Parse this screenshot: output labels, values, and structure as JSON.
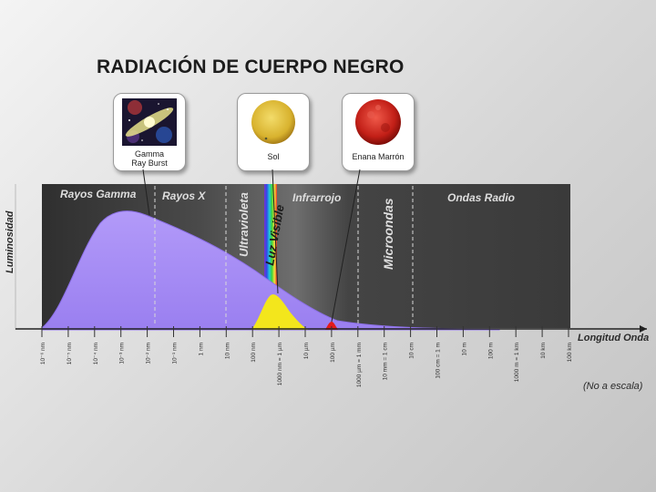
{
  "title": "RADIACIÓN DE CUERPO NEGRO",
  "objects": [
    {
      "id": "gamma",
      "caption": "Gamma Ray Burst"
    },
    {
      "id": "sun",
      "caption": "Sol"
    },
    {
      "id": "dwarf",
      "caption": "Enana Marrón"
    }
  ],
  "y_axis_label": "Luminosidad",
  "x_axis_label": "Longitud Onda",
  "scale_note": "(No a escala)",
  "regions": {
    "gamma": "Rayos Gamma",
    "xray": "Rayos X",
    "uv": "Ultravioleta",
    "visible": "Luz Visible",
    "ir": "Infrarrojo",
    "micro": "Microondas",
    "radio": "Ondas Radio"
  },
  "ticks": [
    "10⁻⁶ nm",
    "10⁻⁵ nm",
    "10⁻⁴ nm",
    "10⁻³ nm",
    "10⁻² nm",
    "10⁻¹ nm",
    "1 nm",
    "10 nm",
    "100 nm",
    "1000 nm = 1 µm",
    "10 µm",
    "100 µm",
    "1000 µm = 1 mm",
    "10 mm = 1 cm",
    "10 cm",
    "100 cm = 1 m",
    "10 m",
    "100 m",
    "1000 m = 1 km",
    "10 km",
    "100 km"
  ],
  "colors": {
    "gamma_curve": "#a78cf6",
    "sun_curve": "#f5ea1e",
    "dwarf_curve": "#e31a1a",
    "band_dark": "#3a3a3a"
  }
}
